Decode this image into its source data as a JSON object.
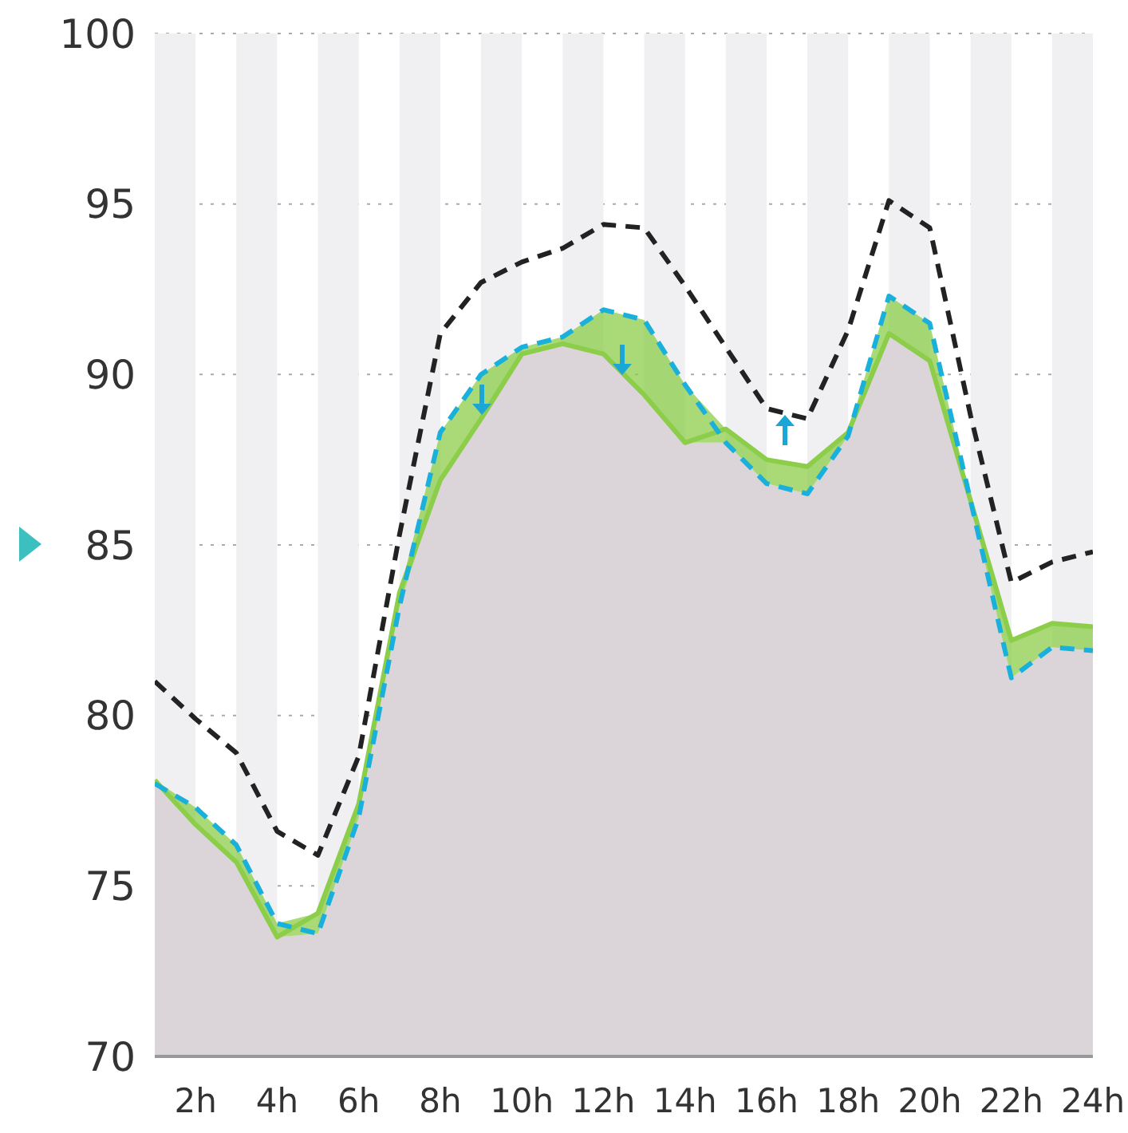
{
  "chart_data": {
    "type": "line",
    "x": [
      1,
      2,
      3,
      4,
      5,
      6,
      7,
      8,
      9,
      10,
      11,
      12,
      13,
      14,
      15,
      16,
      17,
      18,
      19,
      20,
      21,
      22,
      23,
      24
    ],
    "series": [
      {
        "type": "area",
        "color": "#dbd5d9",
        "values": [
          78.0,
          76.8,
          75.7,
          73.5,
          73.6,
          77.0,
          83.2,
          86.9,
          88.7,
          90.6,
          90.9,
          90.6,
          89.4,
          88.0,
          88.0,
          86.8,
          86.5,
          88.2,
          91.2,
          90.4,
          86.3,
          81.1,
          82.0,
          81.9
        ]
      },
      {
        "color": "#8ccd4a",
        "line_style": "solid",
        "values": [
          78.1,
          76.8,
          75.7,
          73.5,
          74.2,
          77.4,
          83.6,
          86.9,
          88.7,
          90.6,
          90.9,
          90.6,
          89.4,
          88.0,
          88.4,
          87.5,
          87.3,
          88.3,
          91.2,
          90.4,
          86.3,
          82.2,
          82.7,
          82.6
        ],
        "lower": [
          78.0,
          76.8,
          75.7,
          73.5,
          73.6,
          77.0,
          83.2,
          86.9,
          88.7,
          90.6,
          90.9,
          90.6,
          89.4,
          88.0,
          88.0,
          86.8,
          86.5,
          88.2,
          91.2,
          90.4,
          86.3,
          81.1,
          82.0,
          81.9
        ],
        "upper": [
          78.1,
          77.3,
          76.2,
          73.9,
          74.2,
          77.4,
          83.6,
          88.3,
          90.0,
          90.8,
          91.1,
          91.9,
          91.6,
          89.7,
          88.4,
          87.5,
          87.3,
          88.3,
          92.3,
          91.5,
          86.3,
          82.2,
          82.7,
          82.6
        ]
      },
      {
        "color": "#1ab0dc",
        "line_style": "dashed",
        "values": [
          78.0,
          77.3,
          76.2,
          73.9,
          73.6,
          77.0,
          83.2,
          88.3,
          90.0,
          90.8,
          91.1,
          91.9,
          91.6,
          89.7,
          88.0,
          86.8,
          86.5,
          88.2,
          92.3,
          91.5,
          86.3,
          81.1,
          82.0,
          81.9
        ]
      },
      {
        "color": "#222222",
        "line_style": "dashed",
        "values": [
          81.0,
          79.9,
          78.9,
          76.6,
          75.9,
          78.8,
          85.3,
          91.2,
          92.7,
          93.3,
          93.7,
          94.4,
          94.3,
          92.6,
          90.8,
          89.0,
          88.7,
          91.3,
          95.1,
          94.3,
          88.8,
          83.9,
          84.5,
          84.8
        ]
      }
    ],
    "xlim": [
      1,
      24
    ],
    "xticks": [
      {
        "value": 2,
        "label": "2h"
      },
      {
        "value": 4,
        "label": "4h"
      },
      {
        "value": 6,
        "label": "6h"
      },
      {
        "value": 8,
        "label": "8h"
      },
      {
        "value": 10,
        "label": "10h"
      },
      {
        "value": 12,
        "label": "12h"
      },
      {
        "value": 14,
        "label": "14h"
      },
      {
        "value": 16,
        "label": "16h"
      },
      {
        "value": 18,
        "label": "18h"
      },
      {
        "value": 20,
        "label": "20h"
      },
      {
        "value": 22,
        "label": "22h"
      },
      {
        "value": 24,
        "label": "24h"
      }
    ],
    "ylim": [
      70,
      100
    ],
    "yticks": [
      70,
      75,
      80,
      85,
      90,
      95,
      100
    ],
    "grid": "y",
    "marker": "none",
    "bands": [
      {
        "axis": "x",
        "from": 1,
        "to": 2,
        "color": "#f0eff1"
      },
      {
        "axis": "x",
        "from": 3,
        "to": 4,
        "color": "#f0eff1"
      },
      {
        "axis": "x",
        "from": 5,
        "to": 6,
        "color": "#f0eff1"
      },
      {
        "axis": "x",
        "from": 7,
        "to": 8,
        "color": "#f0eff1"
      },
      {
        "axis": "x",
        "from": 9,
        "to": 10,
        "color": "#f0eff1"
      },
      {
        "axis": "x",
        "from": 11,
        "to": 12,
        "color": "#f0eff1"
      },
      {
        "axis": "x",
        "from": 13,
        "to": 14,
        "color": "#f0eff1"
      },
      {
        "axis": "x",
        "from": 15,
        "to": 16,
        "color": "#f0eff1"
      },
      {
        "axis": "x",
        "from": 17,
        "to": 18,
        "color": "#f0eff1"
      },
      {
        "axis": "x",
        "from": 19,
        "to": 20,
        "color": "#f0eff1"
      },
      {
        "axis": "x",
        "from": 21,
        "to": 22,
        "color": "#f0eff1"
      },
      {
        "axis": "x",
        "from": 23,
        "to": 24,
        "color": "#f0eff1"
      }
    ]
  }
}
